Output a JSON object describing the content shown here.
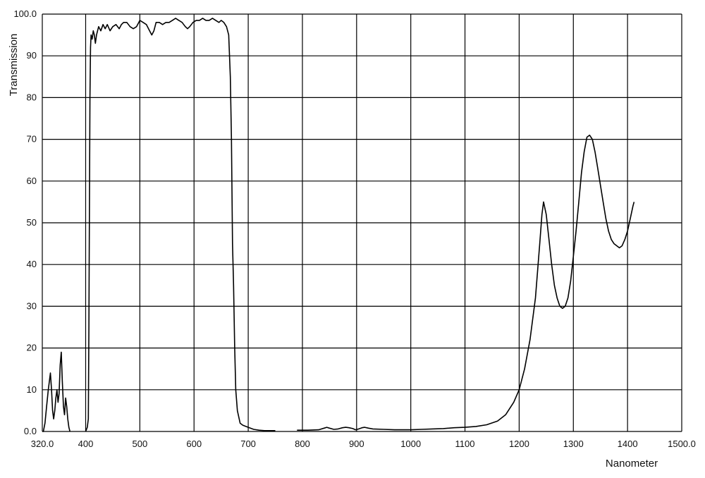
{
  "chart_data": {
    "type": "line",
    "title": "",
    "xlabel": "Nanometer",
    "ylabel": "Transmission",
    "xlim": [
      320,
      1500
    ],
    "ylim": [
      0,
      100
    ],
    "grid": true,
    "xticks": [
      {
        "value": 320,
        "label": "320.0"
      },
      {
        "value": 400,
        "label": "400"
      },
      {
        "value": 500,
        "label": "500"
      },
      {
        "value": 600,
        "label": "600"
      },
      {
        "value": 700,
        "label": "700"
      },
      {
        "value": 800,
        "label": "800"
      },
      {
        "value": 900,
        "label": "900"
      },
      {
        "value": 1000,
        "label": "1000"
      },
      {
        "value": 1100,
        "label": "1100"
      },
      {
        "value": 1200,
        "label": "1200"
      },
      {
        "value": 1300,
        "label": "1300"
      },
      {
        "value": 1400,
        "label": "1400"
      },
      {
        "value": 1500,
        "label": "1500.0"
      }
    ],
    "yticks": [
      {
        "value": 0,
        "label": "0.0"
      },
      {
        "value": 10,
        "label": "10"
      },
      {
        "value": 20,
        "label": "20"
      },
      {
        "value": 30,
        "label": "30"
      },
      {
        "value": 40,
        "label": "40"
      },
      {
        "value": 50,
        "label": "50"
      },
      {
        "value": 60,
        "label": "60"
      },
      {
        "value": 70,
        "label": "70"
      },
      {
        "value": 80,
        "label": "80"
      },
      {
        "value": 90,
        "label": "90"
      },
      {
        "value": 100,
        "label": "100.0"
      }
    ],
    "series": [
      {
        "segments": [
          [
            [
              320,
              0
            ],
            [
              322,
              0
            ],
            [
              325,
              2
            ],
            [
              328,
              6
            ],
            [
              331,
              10
            ],
            [
              333,
              12
            ],
            [
              335,
              14
            ],
            [
              337,
              10
            ],
            [
              339,
              5
            ],
            [
              341,
              3
            ],
            [
              343,
              5
            ],
            [
              345,
              8
            ],
            [
              347,
              10
            ],
            [
              349,
              7
            ],
            [
              351,
              9
            ],
            [
              353,
              16
            ],
            [
              355,
              19
            ],
            [
              357,
              12
            ],
            [
              359,
              6
            ],
            [
              361,
              4
            ],
            [
              363,
              8
            ],
            [
              365,
              6
            ],
            [
              367,
              3
            ],
            [
              369,
              1
            ],
            [
              371,
              0
            ]
          ],
          [
            [
              400,
              0
            ],
            [
              403,
              1
            ],
            [
              405,
              3
            ],
            [
              406,
              25
            ],
            [
              407,
              55
            ],
            [
              408,
              80
            ],
            [
              409,
              92
            ],
            [
              410,
              95
            ],
            [
              412,
              94
            ],
            [
              414,
              96
            ],
            [
              416,
              95
            ],
            [
              418,
              93
            ],
            [
              420,
              95
            ],
            [
              422,
              96
            ],
            [
              424,
              97
            ],
            [
              428,
              96
            ],
            [
              432,
              97.5
            ],
            [
              436,
              96.5
            ],
            [
              440,
              97.5
            ],
            [
              445,
              96
            ],
            [
              450,
              97
            ],
            [
              456,
              97.5
            ],
            [
              462,
              96.5
            ],
            [
              466,
              97.5
            ],
            [
              470,
              98
            ],
            [
              476,
              98
            ],
            [
              482,
              97
            ],
            [
              488,
              96.5
            ],
            [
              494,
              97
            ],
            [
              500,
              98.5
            ],
            [
              506,
              98
            ],
            [
              512,
              97.5
            ],
            [
              518,
              96
            ],
            [
              522,
              95
            ],
            [
              526,
              96
            ],
            [
              530,
              98
            ],
            [
              536,
              98
            ],
            [
              542,
              97.5
            ],
            [
              548,
              98
            ],
            [
              554,
              98
            ],
            [
              560,
              98.5
            ],
            [
              566,
              99
            ],
            [
              572,
              98.5
            ],
            [
              578,
              98
            ],
            [
              584,
              97
            ],
            [
              588,
              96.5
            ],
            [
              592,
              97
            ],
            [
              598,
              98
            ],
            [
              604,
              98.5
            ],
            [
              610,
              98.5
            ],
            [
              616,
              99
            ],
            [
              622,
              98.5
            ],
            [
              628,
              98.5
            ],
            [
              634,
              99
            ],
            [
              640,
              98.5
            ],
            [
              646,
              98
            ],
            [
              650,
              98.5
            ],
            [
              655,
              98
            ],
            [
              660,
              97
            ],
            [
              664,
              95
            ],
            [
              667,
              85
            ],
            [
              669,
              70
            ],
            [
              671,
              45
            ],
            [
              673,
              35
            ],
            [
              675,
              20
            ],
            [
              677,
              10
            ],
            [
              680,
              5
            ],
            [
              685,
              2
            ],
            [
              690,
              1.5
            ],
            [
              700,
              1
            ],
            [
              710,
              0.5
            ],
            [
              720,
              0.3
            ],
            [
              730,
              0.2
            ],
            [
              740,
              0.2
            ],
            [
              750,
              0.2
            ]
          ],
          [
            [
              790,
              0.3
            ],
            [
              810,
              0.3
            ],
            [
              830,
              0.4
            ],
            [
              840,
              0.8
            ],
            [
              845,
              1.0
            ],
            [
              850,
              0.8
            ],
            [
              858,
              0.5
            ],
            [
              866,
              0.6
            ],
            [
              874,
              0.9
            ],
            [
              880,
              1.0
            ],
            [
              886,
              0.9
            ],
            [
              893,
              0.7
            ],
            [
              898,
              0.4
            ],
            [
              904,
              0.6
            ],
            [
              910,
              0.9
            ],
            [
              915,
              1.0
            ],
            [
              922,
              0.8
            ],
            [
              930,
              0.6
            ],
            [
              950,
              0.5
            ],
            [
              970,
              0.4
            ],
            [
              1000,
              0.4
            ],
            [
              1020,
              0.5
            ],
            [
              1040,
              0.6
            ],
            [
              1060,
              0.7
            ],
            [
              1080,
              0.9
            ],
            [
              1100,
              1.0
            ],
            [
              1120,
              1.2
            ],
            [
              1140,
              1.6
            ],
            [
              1160,
              2.5
            ],
            [
              1175,
              4
            ],
            [
              1190,
              7
            ],
            [
              1200,
              10
            ],
            [
              1210,
              15
            ],
            [
              1220,
              22
            ],
            [
              1230,
              32
            ],
            [
              1238,
              45
            ],
            [
              1242,
              52
            ],
            [
              1245,
              55
            ],
            [
              1250,
              52
            ],
            [
              1255,
              46
            ],
            [
              1260,
              40
            ],
            [
              1265,
              35
            ],
            [
              1270,
              32
            ],
            [
              1275,
              30
            ],
            [
              1280,
              29.5
            ],
            [
              1285,
              30
            ],
            [
              1290,
              32
            ],
            [
              1295,
              36
            ],
            [
              1300,
              42
            ],
            [
              1305,
              48
            ],
            [
              1310,
              55
            ],
            [
              1315,
              62
            ],
            [
              1320,
              67
            ],
            [
              1325,
              70.5
            ],
            [
              1330,
              71
            ],
            [
              1335,
              70
            ],
            [
              1340,
              67
            ],
            [
              1345,
              63
            ],
            [
              1350,
              59
            ],
            [
              1355,
              55
            ],
            [
              1360,
              51
            ],
            [
              1365,
              48
            ],
            [
              1370,
              46
            ],
            [
              1375,
              45
            ],
            [
              1380,
              44.5
            ],
            [
              1385,
              44
            ],
            [
              1390,
              44.5
            ],
            [
              1395,
              46
            ],
            [
              1400,
              48
            ],
            [
              1405,
              51
            ],
            [
              1410,
              54
            ],
            [
              1412,
              55
            ]
          ]
        ]
      }
    ]
  }
}
